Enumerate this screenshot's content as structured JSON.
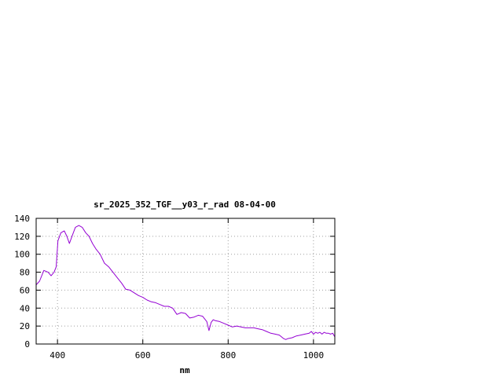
{
  "chart_data": {
    "type": "line",
    "title": "sr_2025_352_TGF__y03_r_rad 08-04-00",
    "xlabel": "nm",
    "ylabel": "",
    "xlim": [
      350,
      1050
    ],
    "ylim": [
      0,
      140
    ],
    "xticks": [
      400,
      600,
      800,
      1000
    ],
    "yticks": [
      0,
      20,
      40,
      60,
      80,
      100,
      120,
      140
    ],
    "grid": true,
    "line_color": "#9400d3",
    "series": [
      {
        "x": [
          350,
          358,
          368,
          378,
          385,
          392,
          397,
          401,
          408,
          416,
          422,
          428,
          434,
          442,
          450,
          458,
          466,
          474,
          482,
          490,
          500,
          510,
          520,
          530,
          540,
          550,
          560,
          570,
          580,
          590,
          600,
          610,
          620,
          630,
          640,
          650,
          660,
          670,
          680,
          690,
          700,
          710,
          720,
          730,
          740,
          750,
          755,
          760,
          765,
          770,
          780,
          790,
          800,
          810,
          820,
          830,
          840,
          850,
          860,
          870,
          880,
          890,
          900,
          910,
          920,
          930,
          935,
          940,
          950,
          960,
          970,
          980,
          990,
          995,
          1000,
          1005,
          1010,
          1015,
          1020,
          1025,
          1030,
          1035,
          1040,
          1045,
          1050
        ],
        "y": [
          66,
          70,
          82,
          80,
          76,
          80,
          86,
          115,
          124,
          126,
          120,
          112,
          120,
          130,
          132,
          130,
          124,
          120,
          112,
          106,
          100,
          90,
          86,
          80,
          74,
          68,
          61,
          60,
          57,
          54,
          52,
          49,
          47,
          46,
          44,
          42,
          42,
          40,
          33,
          35,
          34,
          29,
          30,
          32,
          31,
          25,
          15,
          24,
          27,
          26,
          25,
          23,
          21,
          19,
          20,
          19,
          18,
          18,
          18,
          17,
          16,
          14,
          12,
          11,
          10,
          6,
          5,
          6,
          7,
          9,
          10,
          11,
          12,
          14,
          11,
          13,
          12,
          13,
          11,
          13,
          12,
          12,
          11,
          12,
          8
        ]
      }
    ]
  }
}
